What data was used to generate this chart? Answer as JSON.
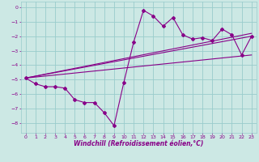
{
  "xlabel": "Windchill (Refroidissement éolien,°C)",
  "bg_color": "#cce8e4",
  "grid_color": "#99cccc",
  "line_color": "#880088",
  "xlim": [
    -0.5,
    23.5
  ],
  "ylim": [
    -8.7,
    0.4
  ],
  "xticks": [
    0,
    1,
    2,
    3,
    4,
    5,
    6,
    7,
    8,
    9,
    10,
    11,
    12,
    13,
    14,
    15,
    16,
    17,
    18,
    19,
    20,
    21,
    22,
    23
  ],
  "yticks": [
    0,
    -1,
    -2,
    -3,
    -4,
    -5,
    -6,
    -7,
    -8
  ],
  "series": [
    [
      0,
      -4.9
    ],
    [
      1,
      -5.3
    ],
    [
      2,
      -5.5
    ],
    [
      3,
      -5.5
    ],
    [
      4,
      -5.6
    ],
    [
      5,
      -6.4
    ],
    [
      6,
      -6.6
    ],
    [
      7,
      -6.6
    ],
    [
      8,
      -7.3
    ],
    [
      9,
      -8.2
    ],
    [
      10,
      -5.2
    ],
    [
      11,
      -2.4
    ],
    [
      12,
      -0.2
    ],
    [
      13,
      -0.6
    ],
    [
      14,
      -1.3
    ],
    [
      15,
      -0.7
    ],
    [
      16,
      -1.9
    ],
    [
      17,
      -2.2
    ],
    [
      18,
      -2.1
    ],
    [
      19,
      -2.3
    ],
    [
      20,
      -1.5
    ],
    [
      21,
      -1.9
    ],
    [
      22,
      -3.3
    ],
    [
      23,
      -2.0
    ]
  ],
  "regression_lines": [
    {
      "x": [
        0,
        23
      ],
      "y": [
        -4.9,
        -2.0
      ]
    },
    {
      "x": [
        0,
        23
      ],
      "y": [
        -4.9,
        -3.3
      ]
    },
    {
      "x": [
        0,
        23
      ],
      "y": [
        -4.9,
        -1.8
      ]
    }
  ]
}
